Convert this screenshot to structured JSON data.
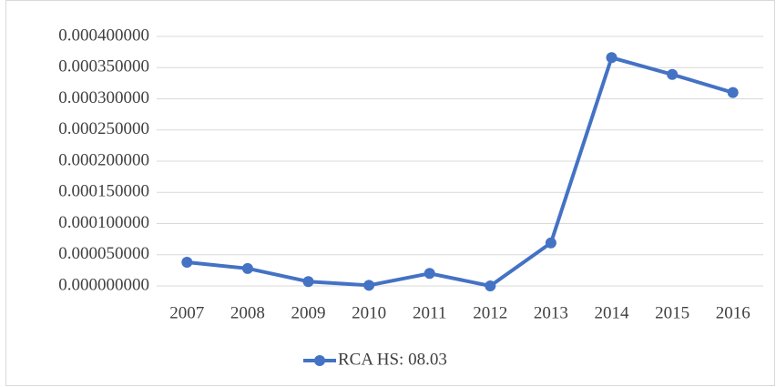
{
  "chart_data": {
    "type": "line",
    "categories": [
      "2007",
      "2008",
      "2009",
      "2010",
      "2011",
      "2012",
      "2013",
      "2014",
      "2015",
      "2016"
    ],
    "series": [
      {
        "name": "RCA HS: 08.03",
        "color": "#4472c4",
        "values": [
          3.8e-05,
          2.8e-05,
          7e-06,
          1e-06,
          2e-05,
          0,
          6.9e-05,
          0.000366,
          0.000339,
          0.00031
        ]
      }
    ],
    "ylim": [
      0,
      0.0004
    ],
    "yticks": [
      {
        "value": 0,
        "label": "0.000000000"
      },
      {
        "value": 5e-05,
        "label": "0.000050000"
      },
      {
        "value": 0.0001,
        "label": "0.000100000"
      },
      {
        "value": 0.00015,
        "label": "0.000150000"
      },
      {
        "value": 0.0002,
        "label": "0.000200000"
      },
      {
        "value": 0.00025,
        "label": "0.000250000"
      },
      {
        "value": 0.0003,
        "label": "0.000300000"
      },
      {
        "value": 0.00035,
        "label": "0.000350000"
      },
      {
        "value": 0.0004,
        "label": "0.000400000"
      }
    ],
    "grid": true,
    "legend": "bottom"
  }
}
